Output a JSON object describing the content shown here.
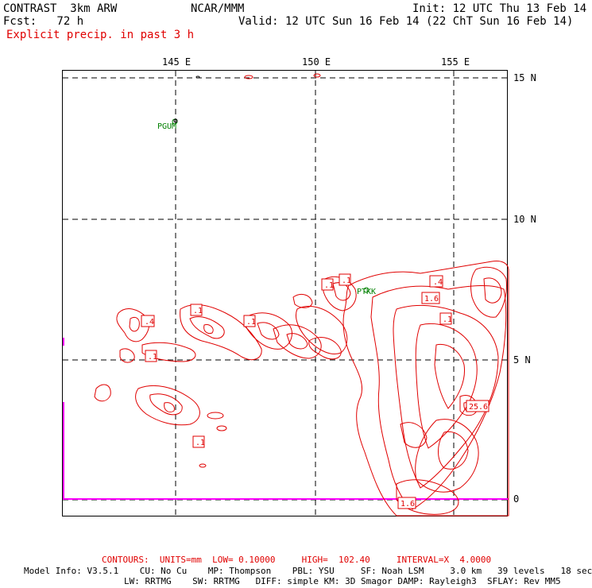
{
  "header": {
    "model": "CONTRAST  3km ARW",
    "center": "NCAR/MMM",
    "init": "Init: 12 UTC Thu 13 Feb 14",
    "fcst": "Fcst:   72 h",
    "valid": "Valid: 12 UTC Sun 16 Feb 14 (22 ChT Sun 16 Feb 14)",
    "field": "Explicit precip. in past 3 h"
  },
  "map": {
    "lon_labels": [
      "145 E",
      "150 E",
      "155 E"
    ],
    "lat_labels": [
      "15 N",
      "10 N",
      "5 N",
      "0"
    ],
    "station_labels": [
      "PGUM",
      "PTKK"
    ],
    "contour_labels": [
      ".1",
      ".1",
      ".4",
      ".1",
      ".1",
      ".1",
      ".4",
      ".1",
      ".1",
      "1.6",
      ".1",
      "25.6",
      "1.6"
    ],
    "colors": {
      "contour": "#e00000",
      "grid": "#000000",
      "station": "#008000",
      "boundary": "#ff00ff"
    }
  },
  "footer": {
    "contours": "CONTOURS:  UNITS=mm  LOW= 0.10000     HIGH=  102.40     INTERVAL=X  4.0000",
    "model_info": "Model Info: V3.5.1    CU: No Cu    MP: Thompson    PBL: YSU     SF: Noah LSM     3.0 km   39 levels   18 sec",
    "model_info2": "LW: RRTMG    SW: RRTMG   DIFF: simple KM: 3D Smagor DAMP: Rayleigh3  SFLAY: Rev MM5"
  }
}
